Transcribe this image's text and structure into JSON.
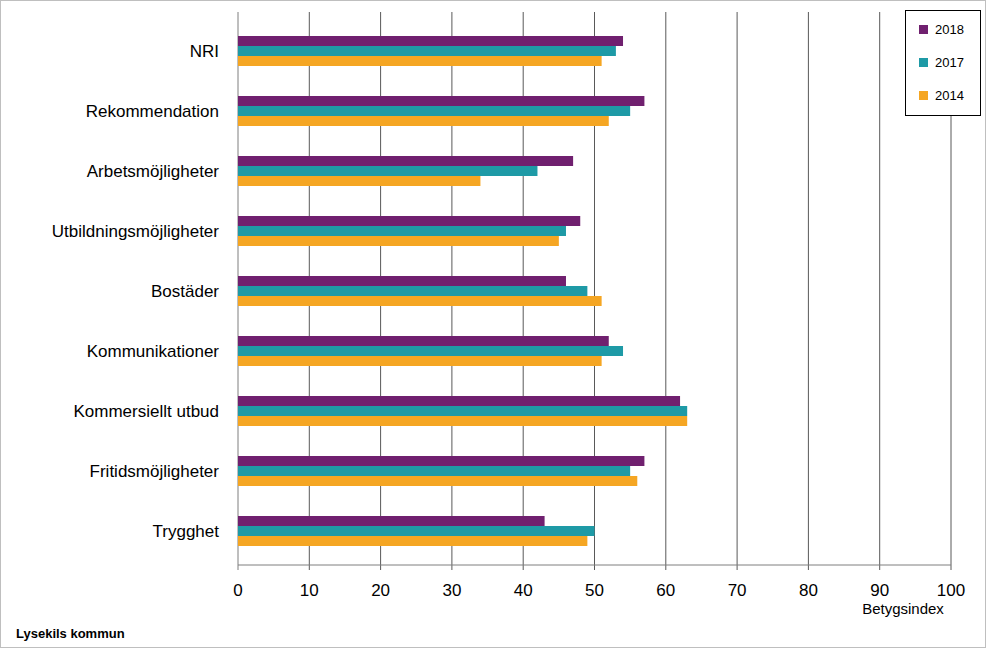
{
  "chart_data": {
    "type": "bar",
    "orientation": "horizontal",
    "categories": [
      "NRI",
      "Rekommendation",
      "Arbetsmöjligheter",
      "Utbildningsmöjligheter",
      "Bostäder",
      "Kommunikationer",
      "Kommersiellt utbud",
      "Fritidsmöjligheter",
      "Trygghet"
    ],
    "series": [
      {
        "name": "2018",
        "color": "#70206f",
        "values": [
          54,
          57,
          47,
          48,
          46,
          52,
          62,
          57,
          43
        ]
      },
      {
        "name": "2017",
        "color": "#1e9aa6",
        "values": [
          53,
          55,
          42,
          46,
          49,
          54,
          63,
          55,
          50
        ]
      },
      {
        "name": "2014",
        "color": "#f5a623",
        "values": [
          51,
          52,
          34,
          45,
          51,
          51,
          63,
          56,
          49
        ]
      }
    ],
    "x_label": "Betygsindex",
    "xlim": [
      0,
      100
    ],
    "xticks": [
      0,
      10,
      20,
      30,
      40,
      50,
      60,
      70,
      80,
      90,
      100
    ],
    "grid": true,
    "legend": "upper right",
    "annotations": [
      "Lysekils kommun"
    ]
  }
}
